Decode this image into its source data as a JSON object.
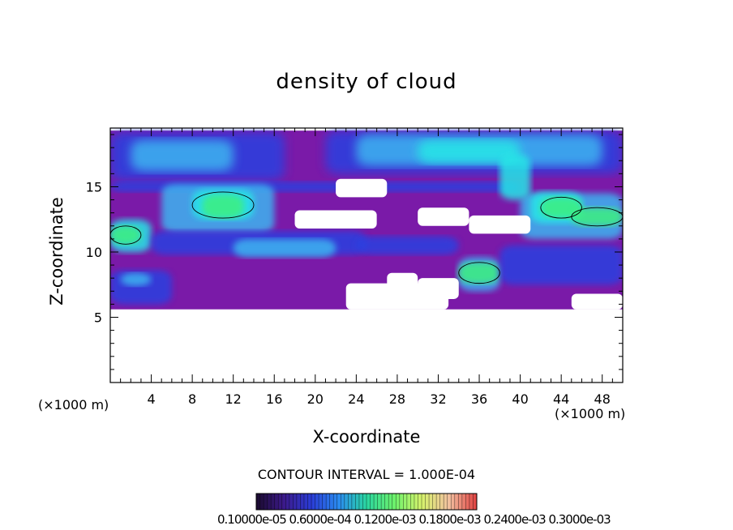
{
  "chart_data": {
    "type": "heatmap",
    "title": "density of cloud",
    "xlabel": "X-coordinate",
    "ylabel": "Z-coordinate",
    "x_unit_left": "(×1000 m)",
    "x_unit_right": "(×1000 m)",
    "xlim": [
      0,
      50
    ],
    "ylim": [
      0,
      19.5
    ],
    "x_ticks": [
      4,
      8,
      12,
      16,
      20,
      24,
      28,
      32,
      36,
      40,
      44,
      48
    ],
    "y_ticks": [
      5,
      10,
      15
    ],
    "contour_interval_label": "CONTOUR INTERVAL = 1.000E-04",
    "colorbar_labels": "0.10000e-05 0.6000e-04 0.1200e-03 0.1800e-03 0.2400e-03 0.3000e-03",
    "colorbar_stops": [
      "#1a0a2e",
      "#3c1a8a",
      "#2a3cd6",
      "#2a8cf0",
      "#2ad6a0",
      "#6cf26c",
      "#d6f26c",
      "#f2c0a0",
      "#e04040"
    ],
    "cloud_base_z": 5.6,
    "cloud_top_z": 19.3
  },
  "colors": {
    "purple": "#7a1aa8",
    "blue": "#2a40e0",
    "lightblue": "#3cb4f0",
    "cyan": "#28e6e6",
    "green": "#3cf080"
  }
}
